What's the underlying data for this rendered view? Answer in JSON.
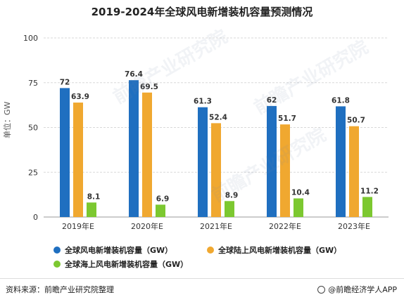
{
  "chart_data": {
    "type": "bar",
    "title": "2019-2024年全球风电新增装机容量预测情况",
    "ylabel": "单位：GW",
    "xlabel": "",
    "categories": [
      "2019年E",
      "2020年E",
      "2021年E",
      "2022年E",
      "2023年E"
    ],
    "ylim": [
      0,
      100
    ],
    "yticks": [
      0,
      25,
      50,
      75,
      100
    ],
    "grid": true,
    "legend_position": "bottom",
    "series": [
      {
        "name": "全球风电新增装机容量（GW）",
        "values": [
          72,
          76.4,
          61.3,
          62,
          61.8
        ],
        "value_labels": [
          "72",
          "76.4",
          "61.3",
          "62",
          "61.8"
        ],
        "color": "#1f6fc0"
      },
      {
        "name": "全球陆上风电新增装机容量（GW）",
        "values": [
          63.9,
          69.5,
          52.4,
          51.7,
          50.7
        ],
        "value_labels": [
          "63.9",
          "69.5",
          "52.4",
          "51.7",
          "50.7"
        ],
        "color": "#f0a830"
      },
      {
        "name": "全球海上风电新增装机容量（GW）",
        "values": [
          8.1,
          6.9,
          8.9,
          10.4,
          11.2
        ],
        "value_labels": [
          "8.1",
          "6.9",
          "8.9",
          "10.4",
          "11.2"
        ],
        "color": "#7cc830"
      }
    ]
  },
  "footer": {
    "source": "资料来源：前瞻产业研究院整理",
    "brand": "@前瞻经济学人APP"
  },
  "watermark": {
    "text": "前瞻产业研究院"
  },
  "icons": {
    "brand": "brand-logo-icon"
  }
}
